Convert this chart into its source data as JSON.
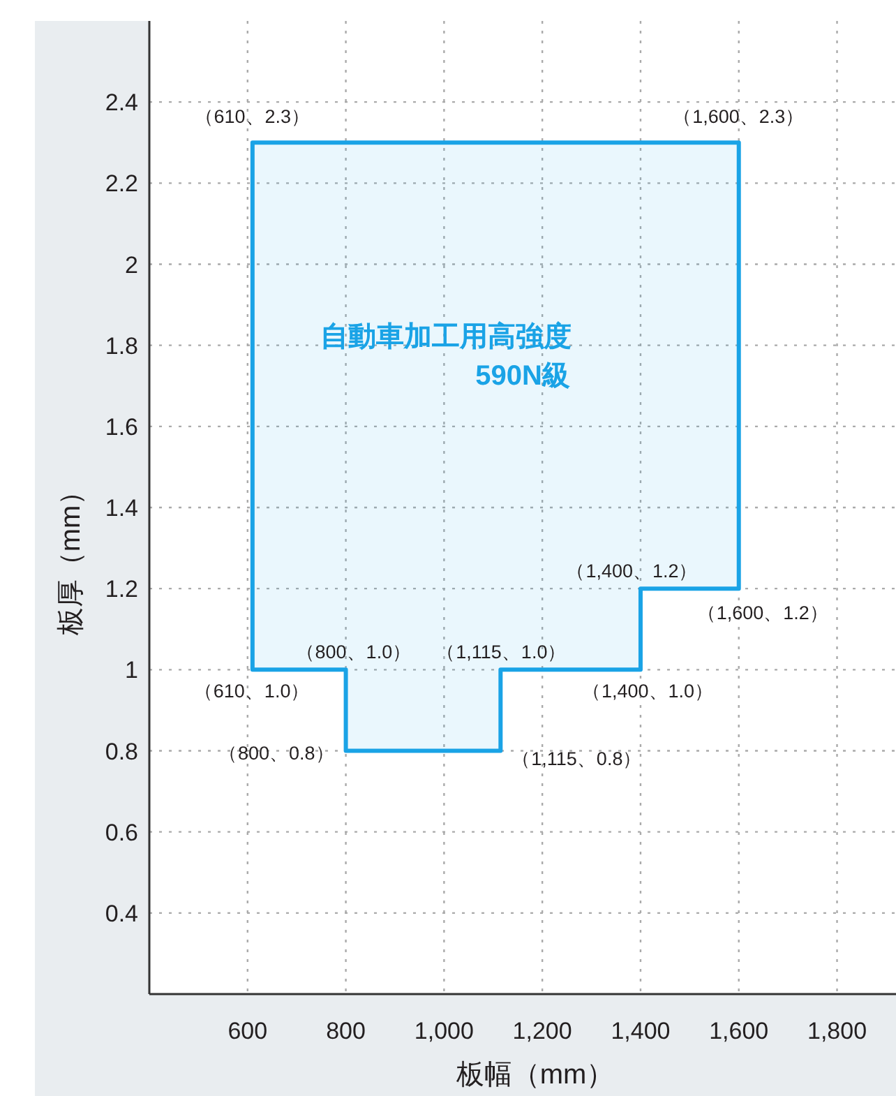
{
  "chart_data": {
    "type": "area",
    "xlabel": "板幅（mm）",
    "ylabel": "板厚（mm）",
    "xlim": [
      400,
      1920
    ],
    "ylim": [
      0.2,
      2.6
    ],
    "xticks": [
      600,
      800,
      {
        "value": 1000,
        "label": "1,000"
      },
      {
        "value": 1200,
        "label": "1,200"
      },
      {
        "value": 1400,
        "label": "1,400"
      },
      {
        "value": 1600,
        "label": "1,600"
      },
      {
        "value": 1800,
        "label": "1,800"
      }
    ],
    "yticks": [
      0.4,
      0.6,
      0.8,
      1,
      1.2,
      1.4,
      1.6,
      1.8,
      2,
      2.2,
      2.4
    ],
    "grid": true,
    "series": [
      {
        "color": "#1aa3e6",
        "x": [
          610,
          1600,
          1600,
          1400,
          1400,
          1115,
          1115,
          800,
          800,
          610
        ],
        "values": [
          2.3,
          2.3,
          1.2,
          1.2,
          1.0,
          1.0,
          0.8,
          0.8,
          1.0,
          1.0
        ]
      }
    ],
    "annotations": [
      "自動車加工用高強度\n590N級",
      {
        "text": "（610、2.3）",
        "x": 610,
        "y": 2.3
      },
      {
        "text": "（1,600、2.3）",
        "x": 1600,
        "y": 2.3
      },
      {
        "text": "（1,400、1.2）",
        "x": 1400,
        "y": 1.2
      },
      {
        "text": "（1,600、1.2）",
        "x": 1600,
        "y": 1.2
      },
      {
        "text": "（800、1.0）",
        "x": 800,
        "y": 1.0
      },
      {
        "text": "（1,115、1.0）",
        "x": 1115,
        "y": 1.0
      },
      {
        "text": "（610、1.0）",
        "x": 610,
        "y": 1.0
      },
      {
        "text": "（1,400、1.0）",
        "x": 1400,
        "y": 1.0
      },
      {
        "text": "（800、0.8）",
        "x": 800,
        "y": 0.8
      },
      {
        "text": "（1,115、0.8）",
        "x": 1115,
        "y": 0.8
      }
    ]
  }
}
